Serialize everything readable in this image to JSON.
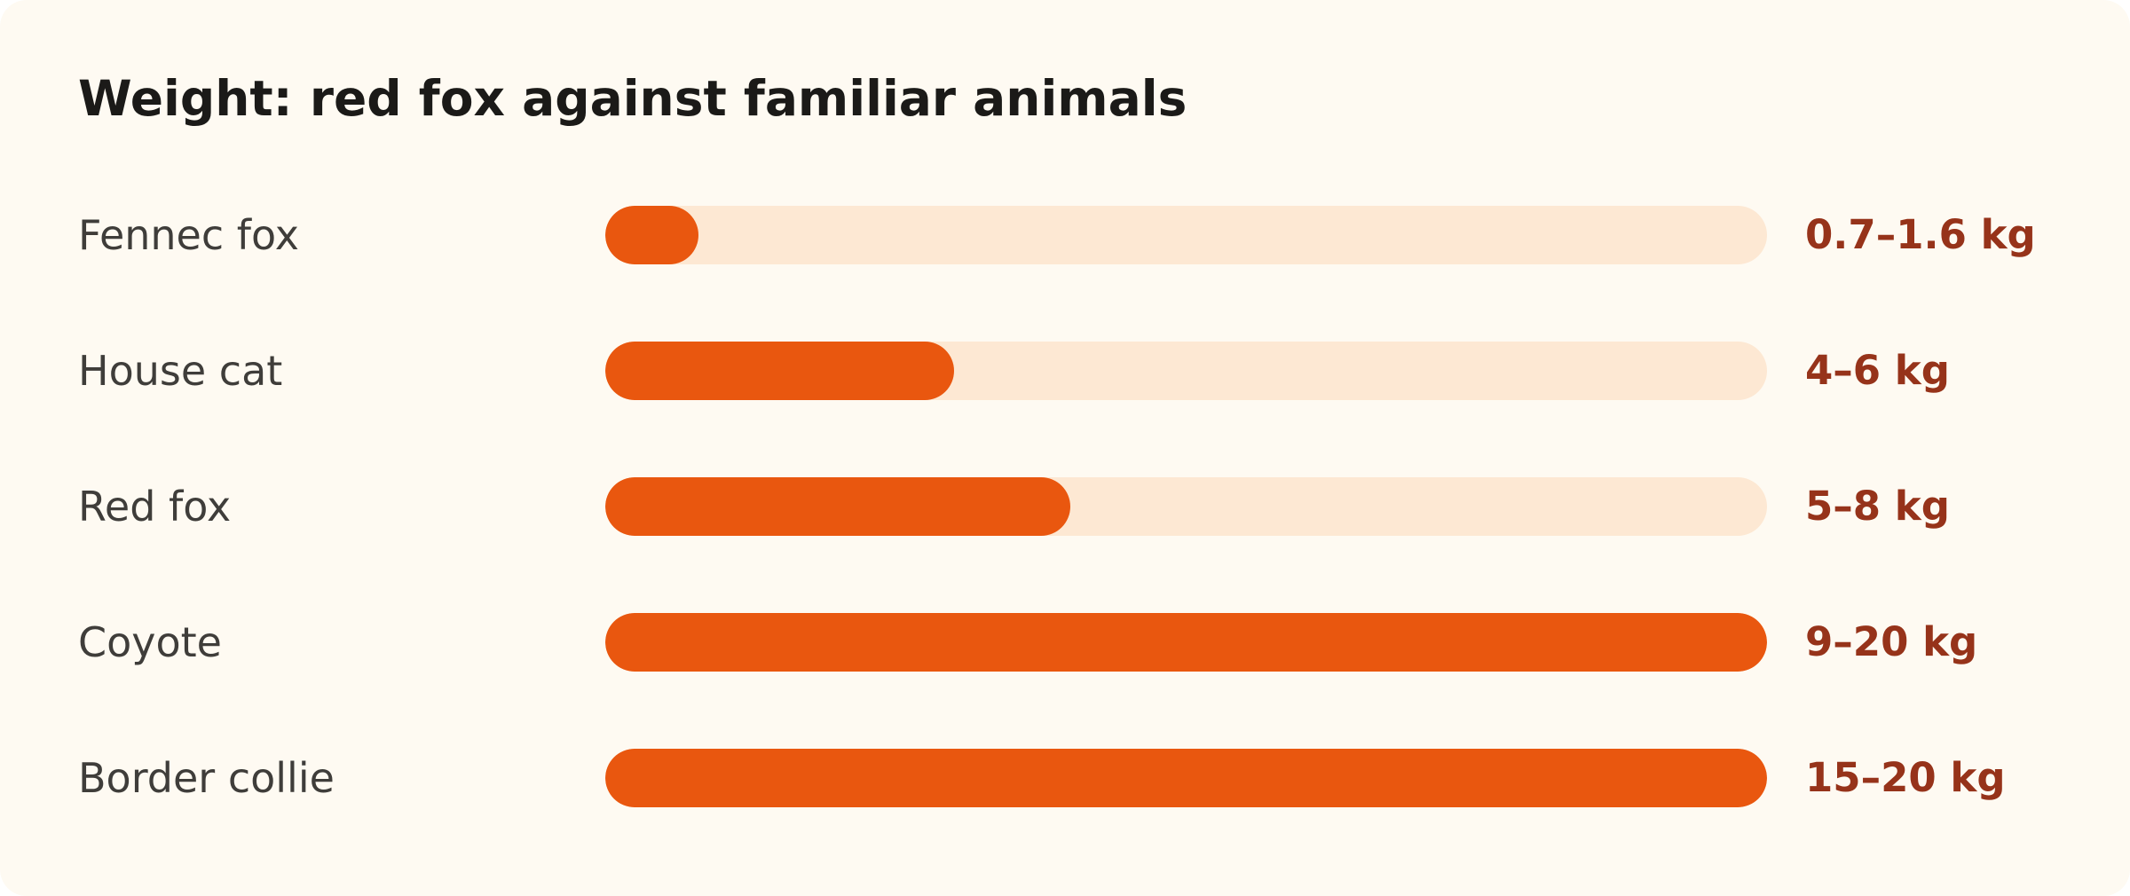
{
  "chart_data": {
    "type": "bar",
    "title": "Weight: red fox against familiar animals",
    "unit": "kg",
    "scale_max": 20,
    "categories": [
      "Fennec fox",
      "House cat",
      "Red fox",
      "Coyote",
      "Border collie"
    ],
    "series": [
      {
        "min": [
          0.7,
          4,
          5,
          9,
          15
        ],
        "max": [
          1.6,
          6,
          8,
          20,
          20
        ]
      }
    ],
    "value_labels": [
      "0.7–1.6 kg",
      "4–6 kg",
      "5–8 kg",
      "9–20 kg",
      "15–20 kg"
    ],
    "colors": {
      "bar_fill": "#e9570f",
      "bar_track": "#fde8d3",
      "value_text": "#96331a",
      "background": "#fefaf2"
    }
  }
}
